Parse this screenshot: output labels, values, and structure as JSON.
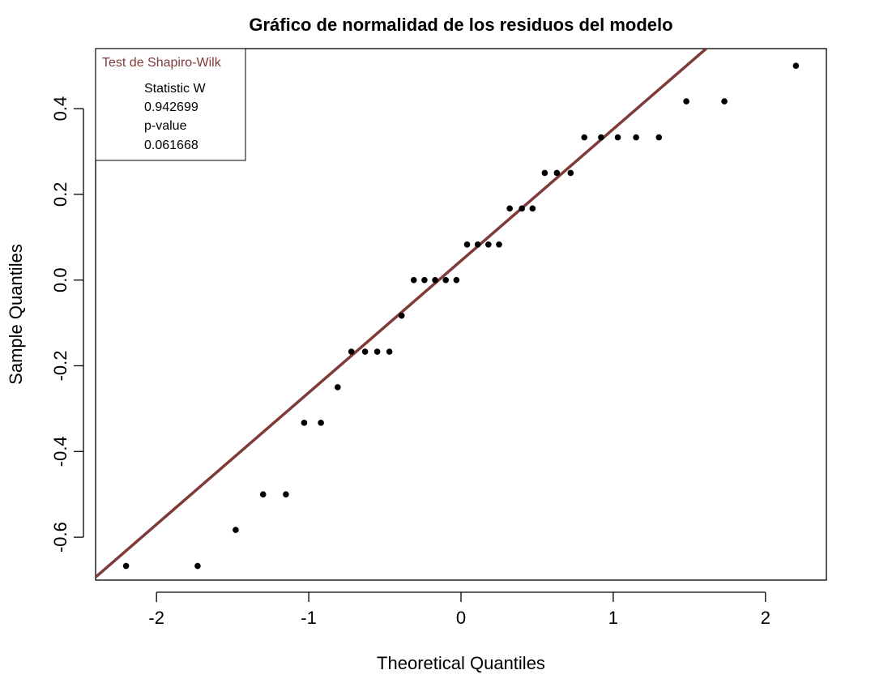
{
  "chart_data": {
    "type": "scatter",
    "title": "Gráfico de normalidad de los residuos del modelo",
    "xlabel": "Theoretical Quantiles",
    "ylabel": "Sample Quantiles",
    "xlim": [
      -2.4,
      2.4
    ],
    "ylim": [
      -0.7,
      0.54
    ],
    "x_ticks": [
      -2,
      -1,
      0,
      1,
      2
    ],
    "x_tick_labels": [
      "-2",
      "-1",
      "0",
      "1",
      "2"
    ],
    "y_ticks": [
      -0.6,
      -0.4,
      -0.2,
      0.0,
      0.2,
      0.4
    ],
    "y_tick_labels": [
      "-0.6",
      "-0.4",
      "-0.2",
      "0.0",
      "0.2",
      "0.4"
    ],
    "series": [
      {
        "points": [
          [
            -2.2,
            -0.667
          ],
          [
            -1.73,
            -0.667
          ],
          [
            -1.48,
            -0.583
          ],
          [
            -1.3,
            -0.5
          ],
          [
            -1.15,
            -0.5
          ],
          [
            -1.03,
            -0.333
          ],
          [
            -0.92,
            -0.333
          ],
          [
            -0.81,
            -0.25
          ],
          [
            -0.72,
            -0.167
          ],
          [
            -0.63,
            -0.167
          ],
          [
            -0.55,
            -0.167
          ],
          [
            -0.47,
            -0.167
          ],
          [
            -0.39,
            -0.083
          ],
          [
            -0.31,
            0.0
          ],
          [
            -0.24,
            0.0
          ],
          [
            -0.17,
            0.0
          ],
          [
            -0.1,
            0.0
          ],
          [
            -0.03,
            0.0
          ],
          [
            0.04,
            0.083
          ],
          [
            0.11,
            0.083
          ],
          [
            0.18,
            0.083
          ],
          [
            0.25,
            0.083
          ],
          [
            0.32,
            0.167
          ],
          [
            0.4,
            0.167
          ],
          [
            0.47,
            0.167
          ],
          [
            0.55,
            0.25
          ],
          [
            0.63,
            0.25
          ],
          [
            0.72,
            0.25
          ],
          [
            0.81,
            0.333
          ],
          [
            0.92,
            0.333
          ],
          [
            1.03,
            0.333
          ],
          [
            1.15,
            0.333
          ],
          [
            1.3,
            0.333
          ],
          [
            1.48,
            0.417
          ],
          [
            1.73,
            0.417
          ],
          [
            2.2,
            0.5
          ]
        ]
      }
    ],
    "reference_line": {
      "points": [
        [
          -2.4,
          -0.693
        ],
        [
          1.63,
          0.546
        ]
      ],
      "color": "#7f3a3a"
    },
    "grid": false,
    "legend": {
      "position": "top-left",
      "title": "Test de Shapiro-Wilk",
      "title_color": "#7f3a3a",
      "entries": [
        "Statistic W",
        "0.942699",
        "p-value",
        "0.061668"
      ]
    },
    "point_color": "#000000"
  }
}
